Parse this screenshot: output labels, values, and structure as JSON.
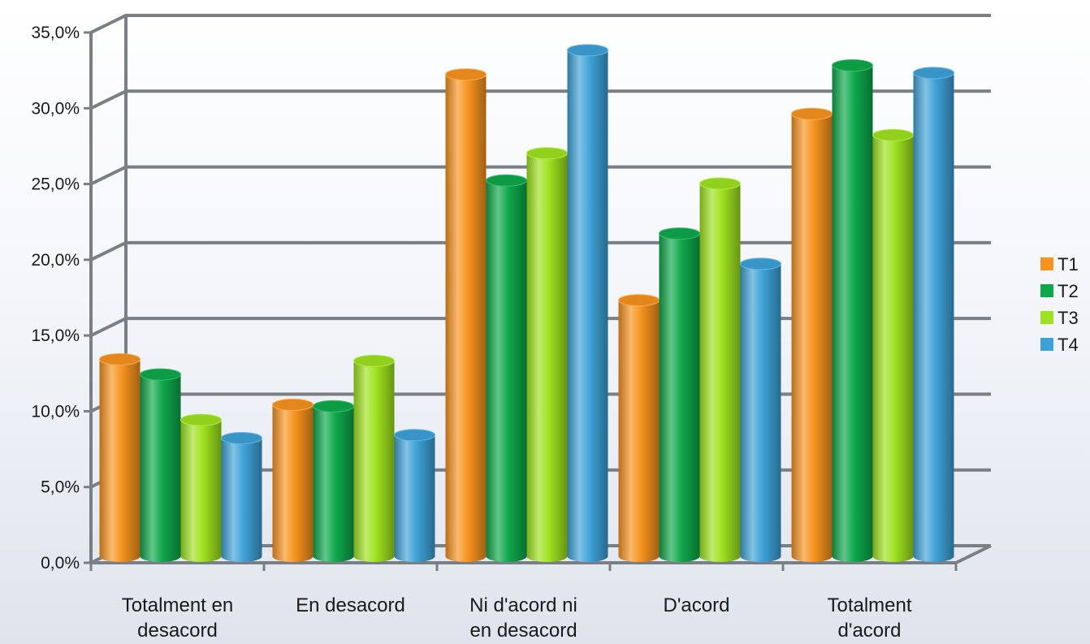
{
  "chart_data": {
    "type": "bar",
    "categories": [
      [
        "Totalment en",
        "desacord"
      ],
      [
        "En desacord"
      ],
      [
        "Ni d'acord ni",
        "en desacord"
      ],
      [
        "D'acord"
      ],
      [
        "Totalment",
        "d'acord"
      ]
    ],
    "series": [
      {
        "name": "T1",
        "color": "#f7931e",
        "values": [
          13.0,
          10.0,
          31.8,
          16.9,
          29.2
        ]
      },
      {
        "name": "T2",
        "color": "#0ea84b",
        "values": [
          12.0,
          9.9,
          24.8,
          21.3,
          32.4
        ]
      },
      {
        "name": "T3",
        "color": "#9ee21f",
        "values": [
          9.0,
          12.9,
          26.6,
          24.6,
          27.8
        ]
      },
      {
        "name": "T4",
        "color": "#3ea2d8",
        "values": [
          7.8,
          8.0,
          33.4,
          19.3,
          31.9
        ]
      }
    ],
    "y_ticks": [
      "0,0%",
      "5,0%",
      "10,0%",
      "15,0%",
      "20,0%",
      "25,0%",
      "30,0%",
      "35,0%"
    ],
    "ylim": [
      0,
      35
    ],
    "legend_position": "right",
    "grid": true,
    "title": "",
    "xlabel": "",
    "ylabel": ""
  }
}
